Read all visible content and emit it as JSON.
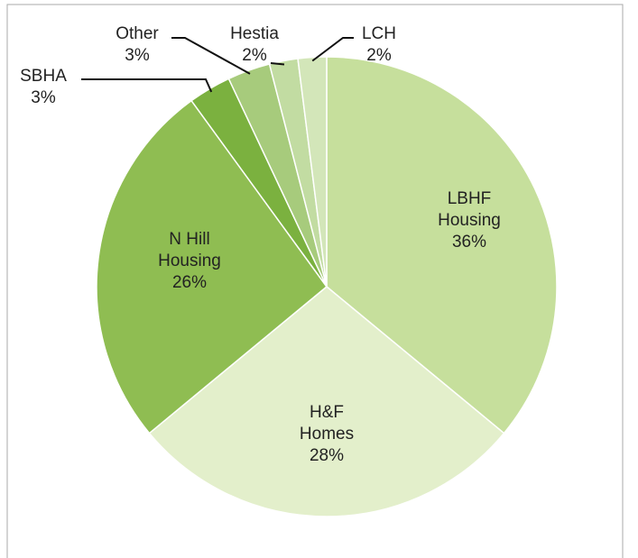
{
  "chart_data": {
    "type": "pie",
    "categories": [
      "LBHF Housing",
      "H&F Homes",
      "N Hill Housing",
      "SBHA",
      "Other",
      "Hestia",
      "LCH"
    ],
    "values": [
      36,
      28,
      26,
      3,
      3,
      2,
      2
    ],
    "value_labels": [
      "36%",
      "28%",
      "26%",
      "3%",
      "3%",
      "2%",
      "2%"
    ],
    "colors": [
      "#c6df9c",
      "#e3efcb",
      "#8fbd52",
      "#7bb13f",
      "#a7cb7c",
      "#c2dca2",
      "#d3e6b9"
    ]
  }
}
